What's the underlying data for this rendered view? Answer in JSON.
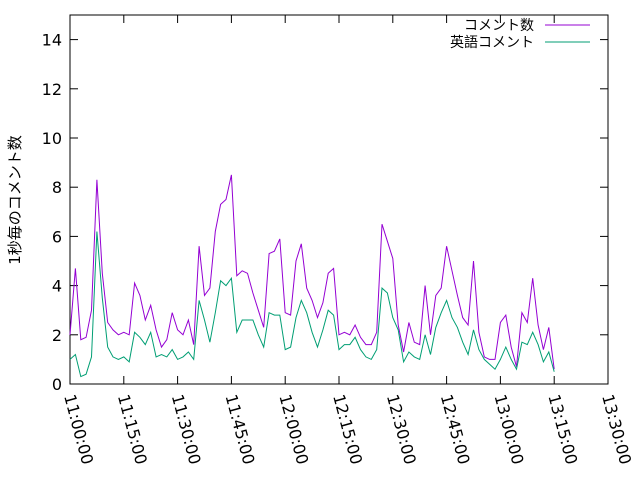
{
  "chart_data": {
    "type": "line",
    "title": "",
    "xlabel": "",
    "ylabel": "1秒毎のコメント数",
    "ylim": [
      0,
      15
    ],
    "yticks": [
      0,
      2,
      4,
      6,
      8,
      10,
      12,
      14
    ],
    "xlim": [
      "11:00:00",
      "13:30:00"
    ],
    "xticks": [
      "11:00:00",
      "11:15:00",
      "11:30:00",
      "11:45:00",
      "12:00:00",
      "12:15:00",
      "12:30:00",
      "12:45:00",
      "13:00:00",
      "13:15:00",
      "13:30:00"
    ],
    "grid": false,
    "legend": "top-right",
    "series": [
      {
        "name": "コメント数",
        "color": "#9400d3",
        "x": [
          "11:00:00",
          "11:01:30",
          "11:03:00",
          "11:04:30",
          "11:06:00",
          "11:07:30",
          "11:09:00",
          "11:10:30",
          "11:12:00",
          "11:13:30",
          "11:15:00",
          "11:16:30",
          "11:18:00",
          "11:19:30",
          "11:21:00",
          "11:22:30",
          "11:24:00",
          "11:25:30",
          "11:27:00",
          "11:28:30",
          "11:30:00",
          "11:31:30",
          "11:33:00",
          "11:34:30",
          "11:36:00",
          "11:37:30",
          "11:39:00",
          "11:40:30",
          "11:42:00",
          "11:43:30",
          "11:45:00",
          "11:46:30",
          "11:48:00",
          "11:49:30",
          "11:51:00",
          "11:52:30",
          "11:54:00",
          "11:55:30",
          "11:57:00",
          "11:58:30",
          "12:00:00",
          "12:01:30",
          "12:03:00",
          "12:04:30",
          "12:06:00",
          "12:07:30",
          "12:09:00",
          "12:10:30",
          "12:12:00",
          "12:13:30",
          "12:15:00",
          "12:16:30",
          "12:18:00",
          "12:19:30",
          "12:21:00",
          "12:22:30",
          "12:24:00",
          "12:25:30",
          "12:27:00",
          "12:28:30",
          "12:30:00",
          "12:31:30",
          "12:33:00",
          "12:34:30",
          "12:36:00",
          "12:37:30",
          "12:39:00",
          "12:40:30",
          "12:42:00",
          "12:43:30",
          "12:45:00",
          "12:46:30",
          "12:48:00",
          "12:49:30",
          "12:51:00",
          "12:52:30",
          "12:54:00",
          "12:55:30",
          "12:57:00",
          "12:58:30",
          "13:00:00",
          "13:01:30",
          "13:03:00",
          "13:04:30",
          "13:06:00",
          "13:07:30",
          "13:09:00",
          "13:10:30",
          "13:12:00",
          "13:13:30",
          "13:15:00"
        ],
        "values": [
          2.0,
          4.7,
          1.8,
          1.9,
          3.0,
          8.3,
          4.5,
          2.5,
          2.2,
          2.0,
          2.1,
          2.0,
          4.1,
          3.6,
          2.6,
          3.2,
          2.2,
          1.5,
          1.8,
          2.9,
          2.2,
          2.0,
          2.6,
          1.6,
          5.6,
          3.6,
          3.9,
          6.2,
          7.3,
          7.5,
          8.5,
          4.4,
          4.6,
          4.5,
          3.7,
          3.0,
          2.3,
          5.3,
          5.4,
          5.9,
          2.9,
          2.8,
          5.0,
          5.7,
          3.9,
          3.4,
          2.7,
          3.3,
          4.5,
          4.7,
          2.0,
          2.1,
          2.0,
          2.4,
          1.9,
          1.6,
          1.6,
          2.1,
          6.5,
          5.8,
          5.1,
          2.4,
          1.3,
          2.5,
          1.7,
          1.6,
          4.0,
          2.0,
          3.6,
          3.9,
          5.6,
          4.6,
          3.6,
          2.7,
          2.4,
          5.0,
          2.1,
          1.1,
          1.0,
          1.0,
          2.5,
          2.8,
          1.5,
          0.7,
          2.9,
          2.5,
          4.3,
          2.4,
          1.4,
          2.3,
          0.6
        ]
      },
      {
        "name": "英語コメント",
        "color": "#009e73",
        "x": [
          "11:00:00",
          "11:01:30",
          "11:03:00",
          "11:04:30",
          "11:06:00",
          "11:07:30",
          "11:09:00",
          "11:10:30",
          "11:12:00",
          "11:13:30",
          "11:15:00",
          "11:16:30",
          "11:18:00",
          "11:19:30",
          "11:21:00",
          "11:22:30",
          "11:24:00",
          "11:25:30",
          "11:27:00",
          "11:28:30",
          "11:30:00",
          "11:31:30",
          "11:33:00",
          "11:34:30",
          "11:36:00",
          "11:37:30",
          "11:39:00",
          "11:40:30",
          "11:42:00",
          "11:43:30",
          "11:45:00",
          "11:46:30",
          "11:48:00",
          "11:49:30",
          "11:51:00",
          "11:52:30",
          "11:54:00",
          "11:55:30",
          "11:57:00",
          "11:58:30",
          "12:00:00",
          "12:01:30",
          "12:03:00",
          "12:04:30",
          "12:06:00",
          "12:07:30",
          "12:09:00",
          "12:10:30",
          "12:12:00",
          "12:13:30",
          "12:15:00",
          "12:16:30",
          "12:18:00",
          "12:19:30",
          "12:21:00",
          "12:22:30",
          "12:24:00",
          "12:25:30",
          "12:27:00",
          "12:28:30",
          "12:30:00",
          "12:31:30",
          "12:33:00",
          "12:34:30",
          "12:36:00",
          "12:37:30",
          "12:39:00",
          "12:40:30",
          "12:42:00",
          "12:43:30",
          "12:45:00",
          "12:46:30",
          "12:48:00",
          "12:49:30",
          "12:51:00",
          "12:52:30",
          "12:54:00",
          "12:55:30",
          "12:57:00",
          "12:58:30",
          "13:00:00",
          "13:01:30",
          "13:03:00",
          "13:04:30",
          "13:06:00",
          "13:07:30",
          "13:09:00",
          "13:10:30",
          "13:12:00",
          "13:13:30",
          "13:15:00"
        ],
        "values": [
          1.0,
          1.2,
          0.3,
          0.4,
          1.1,
          6.2,
          3.5,
          1.5,
          1.1,
          1.0,
          1.1,
          0.9,
          2.1,
          1.9,
          1.6,
          2.1,
          1.1,
          1.2,
          1.1,
          1.4,
          1.0,
          1.1,
          1.3,
          1.0,
          3.4,
          2.6,
          1.7,
          2.9,
          4.2,
          4.0,
          4.3,
          2.1,
          2.6,
          2.6,
          2.6,
          2.0,
          1.5,
          2.9,
          2.8,
          2.8,
          1.4,
          1.5,
          2.7,
          3.4,
          2.9,
          2.1,
          1.5,
          2.2,
          3.0,
          2.8,
          1.4,
          1.6,
          1.6,
          1.9,
          1.4,
          1.1,
          1.0,
          1.4,
          3.9,
          3.7,
          2.7,
          2.2,
          0.9,
          1.3,
          1.1,
          1.0,
          2.0,
          1.2,
          2.3,
          2.9,
          3.4,
          2.7,
          2.3,
          1.7,
          1.2,
          2.2,
          1.4,
          1.0,
          0.8,
          0.6,
          1.0,
          1.5,
          1.0,
          0.6,
          1.7,
          1.6,
          2.1,
          1.6,
          0.9,
          1.3,
          0.5
        ]
      }
    ]
  }
}
